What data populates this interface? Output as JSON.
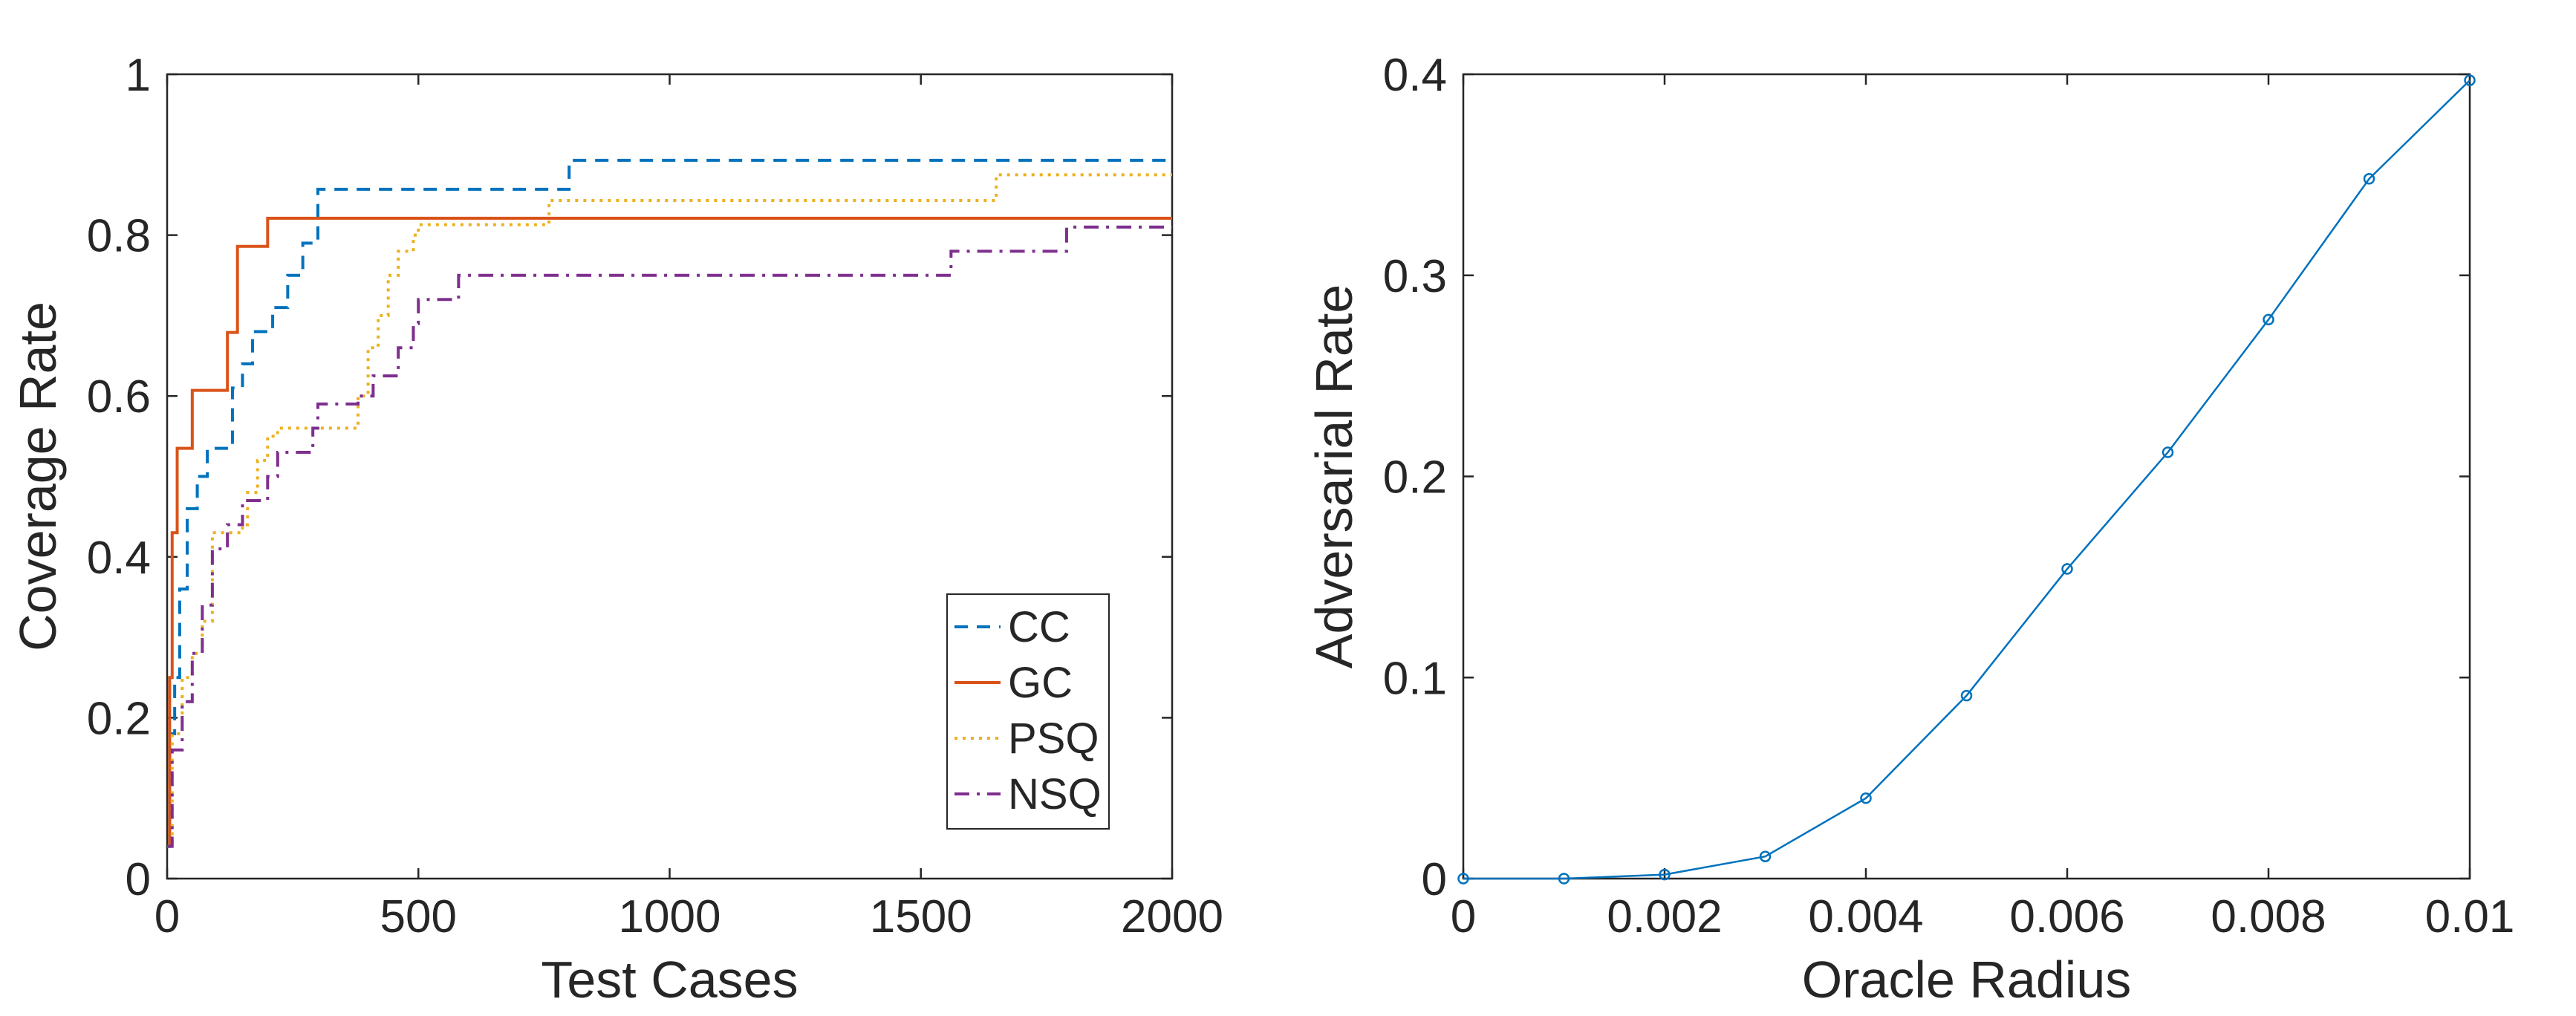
{
  "chart_data": [
    {
      "type": "line",
      "step": true,
      "xlabel": "Test Cases",
      "ylabel": "Coverage Rate",
      "xlim": [
        0,
        2000
      ],
      "ylim": [
        0,
        1
      ],
      "xticks": [
        0,
        500,
        1000,
        1500,
        2000
      ],
      "xtick_labels": [
        "0",
        "500",
        "1000",
        "1500",
        "2000"
      ],
      "yticks": [
        0,
        0.2,
        0.4,
        0.6,
        0.8,
        1
      ],
      "ytick_labels": [
        "0",
        "0.2",
        "0.4",
        "0.6",
        "0.8",
        "1"
      ],
      "grid": false,
      "legend_position": "bottom-right",
      "series": [
        {
          "name": "CC",
          "color": "#0072BD",
          "line_style": "dashed",
          "x": [
            0,
            5,
            15,
            25,
            40,
            60,
            80,
            130,
            150,
            170,
            210,
            240,
            270,
            300,
            800,
            2000
          ],
          "y": [
            0.04,
            0.18,
            0.25,
            0.36,
            0.46,
            0.5,
            0.535,
            0.61,
            0.64,
            0.68,
            0.71,
            0.75,
            0.79,
            0.857,
            0.893,
            0.893
          ]
        },
        {
          "name": "GC",
          "color": "#D95319",
          "line_style": "solid",
          "x": [
            0,
            5,
            10,
            20,
            50,
            120,
            140,
            200,
            2000
          ],
          "y": [
            0.04,
            0.25,
            0.43,
            0.535,
            0.607,
            0.679,
            0.786,
            0.821,
            0.821
          ]
        },
        {
          "name": "PSQ",
          "color": "#EDB120",
          "line_style": "dotted",
          "x": [
            0,
            10,
            30,
            50,
            70,
            90,
            150,
            160,
            180,
            200,
            220,
            240,
            300,
            380,
            400,
            420,
            440,
            460,
            490,
            500,
            760,
            1650,
            2000
          ],
          "y": [
            0.04,
            0.18,
            0.25,
            0.28,
            0.32,
            0.43,
            0.44,
            0.48,
            0.52,
            0.55,
            0.56,
            0.56,
            0.56,
            0.6,
            0.66,
            0.7,
            0.75,
            0.78,
            0.8,
            0.813,
            0.843,
            0.875,
            0.875
          ]
        },
        {
          "name": "NSQ",
          "color": "#7E2F8E",
          "line_style": "dashdot",
          "x": [
            0,
            10,
            30,
            50,
            70,
            90,
            120,
            130,
            150,
            180,
            200,
            220,
            250,
            290,
            300,
            320,
            340,
            360,
            380,
            410,
            430,
            460,
            490,
            500,
            580,
            1560,
            1790,
            2000
          ],
          "y": [
            0.04,
            0.16,
            0.22,
            0.28,
            0.34,
            0.41,
            0.44,
            0.44,
            0.47,
            0.47,
            0.5,
            0.53,
            0.53,
            0.56,
            0.59,
            0.59,
            0.59,
            0.59,
            0.6,
            0.625,
            0.625,
            0.66,
            0.69,
            0.72,
            0.75,
            0.78,
            0.81,
            0.81
          ]
        }
      ]
    },
    {
      "type": "line",
      "markers": true,
      "xlabel": "Oracle Radius",
      "ylabel": "Adversarial Rate",
      "xlim": [
        0,
        0.01
      ],
      "ylim": [
        0,
        0.4
      ],
      "xticks": [
        0,
        0.002,
        0.004,
        0.006,
        0.008,
        0.01
      ],
      "xtick_labels": [
        "0",
        "0.002",
        "0.004",
        "0.006",
        "0.008",
        "0.01"
      ],
      "yticks": [
        0,
        0.1,
        0.2,
        0.3,
        0.4
      ],
      "ytick_labels": [
        "0",
        "0.1",
        "0.2",
        "0.3",
        "0.4"
      ],
      "grid": false,
      "series": [
        {
          "color": "#0072BD",
          "x": [
            0,
            0.001,
            0.002,
            0.003,
            0.004,
            0.005,
            0.006,
            0.007,
            0.008,
            0.009,
            0.01
          ],
          "y": [
            0.0,
            0.0,
            0.002,
            0.011,
            0.04,
            0.091,
            0.154,
            0.212,
            0.278,
            0.348,
            0.397
          ]
        }
      ]
    }
  ]
}
